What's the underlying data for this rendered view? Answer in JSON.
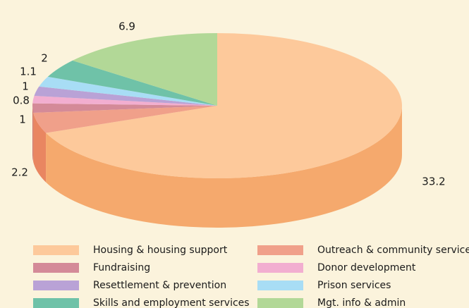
{
  "chart_data": {
    "type": "pie3d",
    "categories": [
      "Housing & housing support",
      "Outreach & community services",
      "Fundraising",
      "Donor development",
      "Resettlement & prevention",
      "Prison services",
      "Skills and employment services",
      "Mgt. info & admin"
    ],
    "values": [
      33.2,
      2.2,
      1,
      0.8,
      1,
      1.1,
      2,
      6.9
    ],
    "colors": [
      "#fdc99b",
      "#f0a08a",
      "#d48a98",
      "#f2aed0",
      "#b9a2d6",
      "#a8ddf5",
      "#6fc2a8",
      "#b2d897"
    ],
    "legend": "bottom"
  }
}
